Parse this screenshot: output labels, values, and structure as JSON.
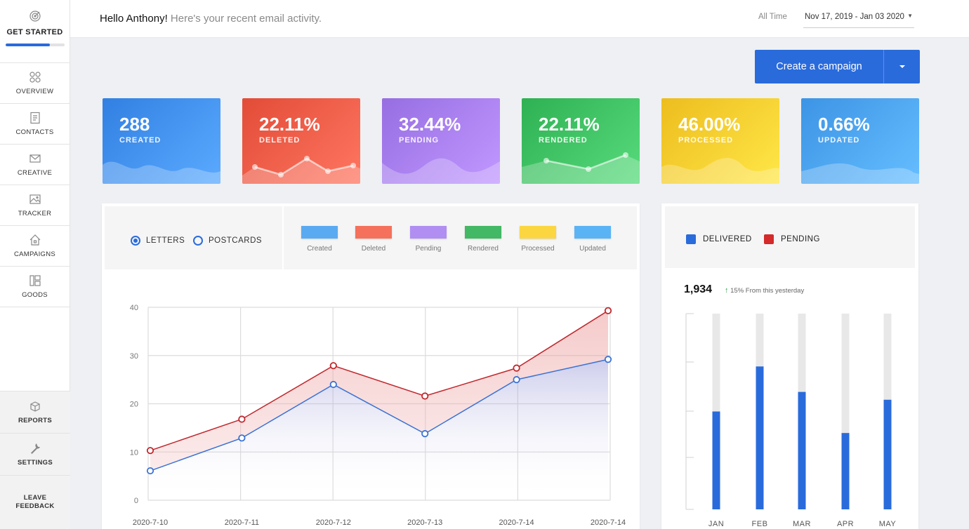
{
  "sidebar": {
    "get_started": "GET STARTED",
    "progress": 0.75,
    "items": [
      {
        "label": "OVERVIEW"
      },
      {
        "label": "CONTACTS"
      },
      {
        "label": "CREATIVE"
      },
      {
        "label": "TRACKER"
      },
      {
        "label": "CAMPAIGNS"
      },
      {
        "label": "GOODS"
      }
    ],
    "bottom": [
      {
        "label": "REPORTS"
      },
      {
        "label": "SETTINGS"
      },
      {
        "label": "LEAVE FEEDBACK"
      }
    ]
  },
  "header": {
    "greeting_name": "Hello Anthony!",
    "greeting_text": "Here's your recent email activity.",
    "range_label": "All Time",
    "date_range": "Nov 17, 2019 - Jan 03 2020"
  },
  "campaign_button": {
    "label": "Create a campaign"
  },
  "stats": [
    {
      "value": "288",
      "label": "CREATED",
      "color": "#3f8ef0"
    },
    {
      "value": "22.11%",
      "label": "DELETED",
      "color": "#f05a45"
    },
    {
      "value": "32.44%",
      "label": "PENDING",
      "color": "#a57cf0"
    },
    {
      "value": "22.11%",
      "label": "RENDERED",
      "color": "#3cbf60"
    },
    {
      "value": "46.00%",
      "label": "PROCESSED",
      "color": "#fbcb2c"
    },
    {
      "value": "0.66%",
      "label": "UPDATED",
      "color": "#4aa2f3"
    }
  ],
  "line_panel": {
    "radios": [
      {
        "label": "LETTERS",
        "selected": true
      },
      {
        "label": "POSTCARDS",
        "selected": false
      }
    ],
    "legend": [
      {
        "label": "Created",
        "color": "#5aaaf2"
      },
      {
        "label": "Deleted",
        "color": "#f5715b"
      },
      {
        "label": "Pending",
        "color": "#b08ef2"
      },
      {
        "label": "Rendered",
        "color": "#43b865"
      },
      {
        "label": "Processed",
        "color": "#fbd640"
      },
      {
        "label": "Updated",
        "color": "#5ab3f5"
      }
    ]
  },
  "bar_panel": {
    "legend": [
      {
        "label": "DELIVERED",
        "color": "#2a6bdc"
      },
      {
        "label": "PENDING",
        "color": "#d42a2a"
      }
    ],
    "total": "1,934",
    "delta": "15% From this yesterday"
  },
  "chart_data": [
    {
      "type": "line",
      "x": [
        "2020-7-10",
        "2020-7-11",
        "2020-7-12",
        "2020-7-13",
        "2020-7-14",
        "2020-7-14"
      ],
      "ylim": [
        0,
        40
      ],
      "yticks": [
        0,
        10,
        20,
        30,
        40
      ],
      "grid": true,
      "series": [
        {
          "values": [
            10.3,
            16.8,
            27.9,
            21.6,
            27.4,
            39.3
          ],
          "color": "#c0282d"
        },
        {
          "values": [
            6.1,
            12.9,
            24.0,
            13.8,
            25.0,
            29.2
          ],
          "color": "#3a72d4"
        }
      ]
    },
    {
      "type": "bar",
      "categories": [
        "JAN",
        "FEB",
        "MAR",
        "APR",
        "MAY"
      ],
      "ylim": [
        0,
        100
      ],
      "series": [
        {
          "values": [
            50,
            73,
            60,
            39,
            56
          ],
          "color": "#2a6bdc"
        }
      ]
    }
  ]
}
